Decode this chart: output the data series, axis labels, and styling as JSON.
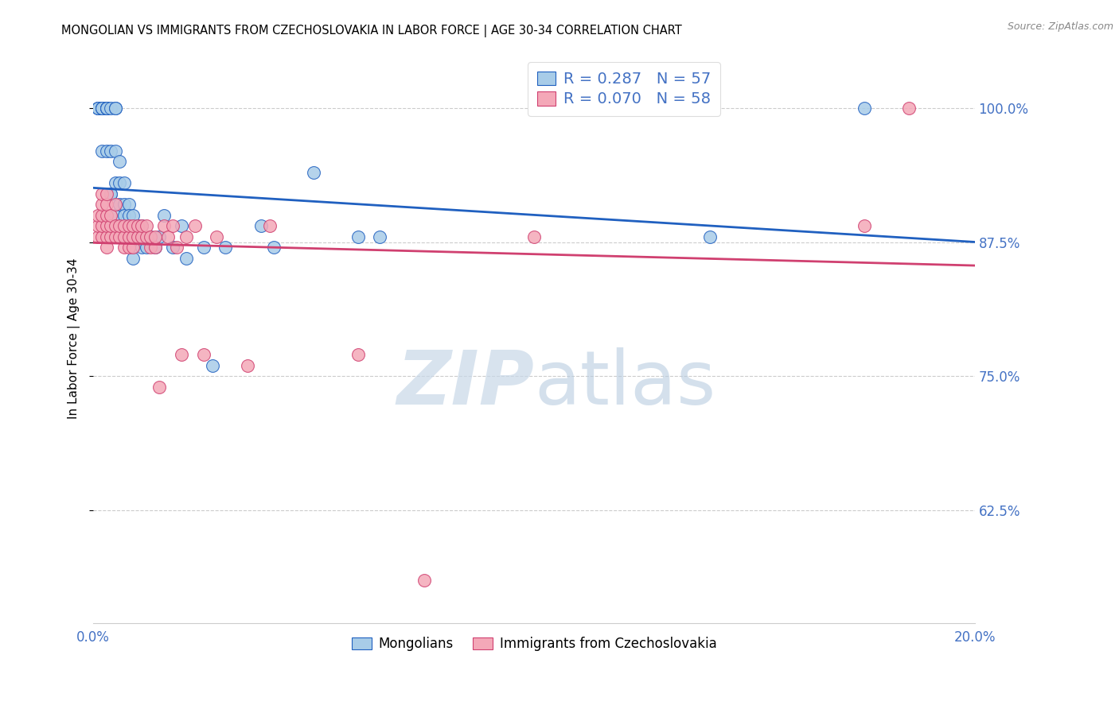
{
  "title": "MONGOLIAN VS IMMIGRANTS FROM CZECHOSLOVAKIA IN LABOR FORCE | AGE 30-34 CORRELATION CHART",
  "source": "Source: ZipAtlas.com",
  "ylabel": "In Labor Force | Age 30-34",
  "ytick_vals": [
    0.625,
    0.75,
    0.875,
    1.0
  ],
  "ytick_labels": [
    "62.5%",
    "75.0%",
    "87.5%",
    "100.0%"
  ],
  "xlim": [
    0.0,
    0.2
  ],
  "ylim": [
    0.52,
    1.05
  ],
  "legend_R1": "0.287",
  "legend_N1": "57",
  "legend_R2": "0.070",
  "legend_N2": "58",
  "legend_label1": "Mongolians",
  "legend_label2": "Immigrants from Czechoslovakia",
  "color_blue": "#a8cce8",
  "color_pink": "#f4a8b8",
  "trendline_blue": "#2060c0",
  "trendline_pink": "#d04070",
  "watermark_color": "#ccdff0",
  "mongolian_x": [
    0.001,
    0.001,
    0.001,
    0.002,
    0.002,
    0.002,
    0.002,
    0.003,
    0.003,
    0.003,
    0.003,
    0.003,
    0.004,
    0.004,
    0.004,
    0.004,
    0.005,
    0.005,
    0.005,
    0.005,
    0.005,
    0.006,
    0.006,
    0.006,
    0.007,
    0.007,
    0.007,
    0.007,
    0.008,
    0.008,
    0.008,
    0.009,
    0.009,
    0.009,
    0.009,
    0.01,
    0.01,
    0.011,
    0.011,
    0.012,
    0.013,
    0.014,
    0.015,
    0.016,
    0.018,
    0.02,
    0.021,
    0.025,
    0.027,
    0.03,
    0.038,
    0.041,
    0.05,
    0.06,
    0.065,
    0.14,
    0.175
  ],
  "mongolian_y": [
    1.0,
    1.0,
    1.0,
    1.0,
    1.0,
    1.0,
    0.96,
    1.0,
    1.0,
    1.0,
    1.0,
    0.96,
    1.0,
    0.96,
    0.92,
    0.92,
    1.0,
    1.0,
    0.96,
    0.93,
    0.9,
    0.95,
    0.93,
    0.91,
    0.93,
    0.91,
    0.9,
    0.88,
    0.91,
    0.9,
    0.88,
    0.9,
    0.88,
    0.87,
    0.86,
    0.89,
    0.88,
    0.89,
    0.87,
    0.87,
    0.88,
    0.87,
    0.88,
    0.9,
    0.87,
    0.89,
    0.86,
    0.87,
    0.76,
    0.87,
    0.89,
    0.87,
    0.94,
    0.88,
    0.88,
    0.88,
    1.0
  ],
  "czech_x": [
    0.001,
    0.001,
    0.001,
    0.002,
    0.002,
    0.002,
    0.002,
    0.002,
    0.003,
    0.003,
    0.003,
    0.003,
    0.003,
    0.003,
    0.004,
    0.004,
    0.004,
    0.005,
    0.005,
    0.005,
    0.006,
    0.006,
    0.007,
    0.007,
    0.007,
    0.008,
    0.008,
    0.008,
    0.009,
    0.009,
    0.009,
    0.01,
    0.01,
    0.011,
    0.011,
    0.012,
    0.012,
    0.013,
    0.013,
    0.014,
    0.014,
    0.015,
    0.016,
    0.017,
    0.018,
    0.019,
    0.02,
    0.021,
    0.023,
    0.025,
    0.028,
    0.035,
    0.04,
    0.06,
    0.075,
    0.1,
    0.175,
    0.185
  ],
  "czech_y": [
    0.88,
    0.89,
    0.9,
    0.88,
    0.89,
    0.9,
    0.91,
    0.92,
    0.87,
    0.88,
    0.89,
    0.9,
    0.91,
    0.92,
    0.88,
    0.89,
    0.9,
    0.88,
    0.89,
    0.91,
    0.88,
    0.89,
    0.87,
    0.88,
    0.89,
    0.87,
    0.88,
    0.89,
    0.87,
    0.88,
    0.89,
    0.88,
    0.89,
    0.88,
    0.89,
    0.88,
    0.89,
    0.87,
    0.88,
    0.87,
    0.88,
    0.74,
    0.89,
    0.88,
    0.89,
    0.87,
    0.77,
    0.88,
    0.89,
    0.77,
    0.88,
    0.76,
    0.89,
    0.77,
    0.56,
    0.88,
    0.89,
    1.0
  ]
}
